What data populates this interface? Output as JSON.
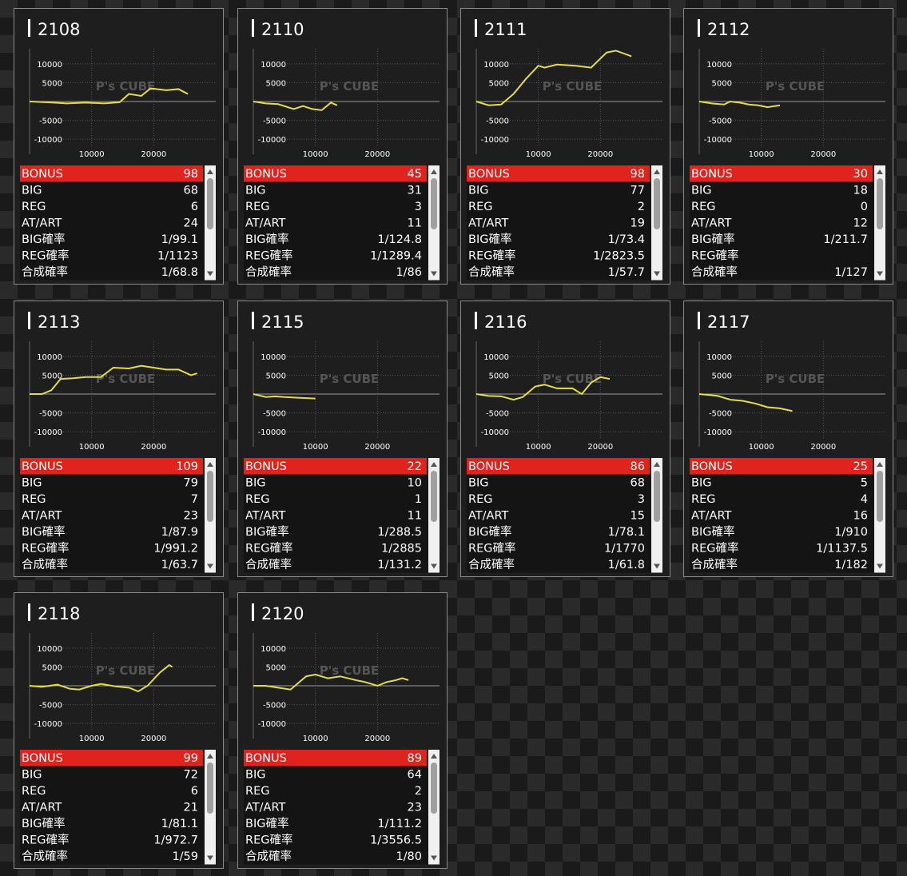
{
  "chart_axes": {
    "type": "line",
    "color": "#e6dc4a",
    "xlim": [
      0,
      30000
    ],
    "ylim": [
      -14000,
      14000
    ],
    "xticks": [
      10000,
      20000
    ],
    "yticks": [
      10000,
      5000,
      -5000,
      -10000
    ],
    "watermark": "P's CUBE"
  },
  "row_labels": [
    "BONUS",
    "BIG",
    "REG",
    "AT/ART",
    "BIG確率",
    "REG確率",
    "合成確率"
  ],
  "cards": [
    {
      "title": "2108",
      "x": [
        0,
        3000,
        6000,
        9000,
        12000,
        14500,
        16000,
        18000,
        19500,
        22000,
        24000,
        25500
      ],
      "values": [
        0,
        -200,
        -500,
        -300,
        -500,
        -200,
        2000,
        1500,
        3500,
        3000,
        3300,
        2000
      ],
      "stats": [
        "98",
        "68",
        "6",
        "24",
        "1/99.1",
        "1/1123",
        "1/68.8"
      ]
    },
    {
      "title": "2110",
      "x": [
        0,
        2000,
        4000,
        6500,
        8000,
        9500,
        11000,
        12500,
        13500
      ],
      "values": [
        0,
        -500,
        -700,
        -2000,
        -1200,
        -2000,
        -2300,
        -300,
        -1000
      ],
      "stats": [
        "45",
        "31",
        "3",
        "11",
        "1/124.8",
        "1/1289.4",
        "1/86"
      ]
    },
    {
      "title": "2111",
      "x": [
        0,
        2000,
        4000,
        6000,
        8000,
        10000,
        11000,
        13000,
        16000,
        18500,
        21000,
        22500,
        25000
      ],
      "values": [
        0,
        -1000,
        -800,
        2000,
        6000,
        9500,
        9000,
        9800,
        9500,
        9000,
        13000,
        13500,
        12000
      ],
      "stats": [
        "98",
        "77",
        "2",
        "19",
        "1/73.4",
        "1/2823.5",
        "1/57.7"
      ]
    },
    {
      "title": "2112",
      "x": [
        0,
        2000,
        4000,
        5000,
        6500,
        8000,
        9500,
        11000,
        13000
      ],
      "values": [
        0,
        -500,
        -800,
        0,
        -300,
        -800,
        -1000,
        -1500,
        -1000
      ],
      "stats": [
        "30",
        "18",
        "0",
        "12",
        "1/211.7",
        null,
        "1/127"
      ]
    },
    {
      "title": "2113",
      "x": [
        0,
        2000,
        3500,
        5000,
        7000,
        9000,
        11500,
        13500,
        16000,
        18000,
        20000,
        22000,
        24000,
        26000,
        27000
      ],
      "values": [
        0,
        0,
        1000,
        4000,
        4200,
        4500,
        4500,
        7000,
        6800,
        7500,
        7000,
        6500,
        6500,
        5000,
        5500
      ],
      "stats": [
        "109",
        "79",
        "7",
        "23",
        "1/87.9",
        "1/991.2",
        "1/63.7"
      ]
    },
    {
      "title": "2115",
      "x": [
        0,
        2000,
        3500,
        5000,
        7500,
        10000
      ],
      "values": [
        0,
        -800,
        -600,
        -800,
        -1000,
        -1200
      ],
      "stats": [
        "22",
        "10",
        "1",
        "11",
        "1/288.5",
        "1/2885",
        "1/131.2"
      ]
    },
    {
      "title": "2116",
      "x": [
        0,
        2000,
        4000,
        6000,
        7500,
        9500,
        11000,
        13000,
        15500,
        17000,
        18500,
        20000,
        21500
      ],
      "values": [
        0,
        -500,
        -600,
        -1500,
        -800,
        2000,
        2500,
        1500,
        1500,
        0,
        3000,
        4500,
        4000
      ],
      "stats": [
        "86",
        "68",
        "3",
        "15",
        "1/78.1",
        "1/1770",
        "1/61.8"
      ]
    },
    {
      "title": "2117",
      "x": [
        0,
        3000,
        5000,
        7000,
        9000,
        11000,
        13000,
        15000
      ],
      "values": [
        0,
        -500,
        -1500,
        -1800,
        -2500,
        -3500,
        -3800,
        -4500
      ],
      "stats": [
        "25",
        "5",
        "4",
        "16",
        "1/910",
        "1/1137.5",
        "1/182"
      ]
    },
    {
      "title": "2118",
      "x": [
        0,
        2000,
        4500,
        6500,
        8000,
        10000,
        11500,
        14000,
        16000,
        17500,
        19000,
        21000,
        22500,
        23000
      ],
      "values": [
        0,
        -300,
        300,
        -800,
        -1000,
        0,
        500,
        -200,
        -500,
        -1500,
        0,
        3500,
        5500,
        5000
      ],
      "stats": [
        "99",
        "72",
        "6",
        "21",
        "1/81.1",
        "1/972.7",
        "1/59"
      ]
    },
    {
      "title": "2120",
      "x": [
        0,
        2000,
        4000,
        6000,
        8500,
        10000,
        12000,
        14000,
        16500,
        18000,
        20000,
        21500,
        23000,
        24000,
        25000
      ],
      "values": [
        0,
        0,
        -500,
        -1000,
        2500,
        3000,
        2000,
        2500,
        1500,
        1000,
        0,
        1000,
        1500,
        2000,
        1500
      ],
      "stats": [
        "89",
        "64",
        "2",
        "23",
        "1/111.2",
        "1/3556.5",
        "1/80"
      ]
    }
  ]
}
